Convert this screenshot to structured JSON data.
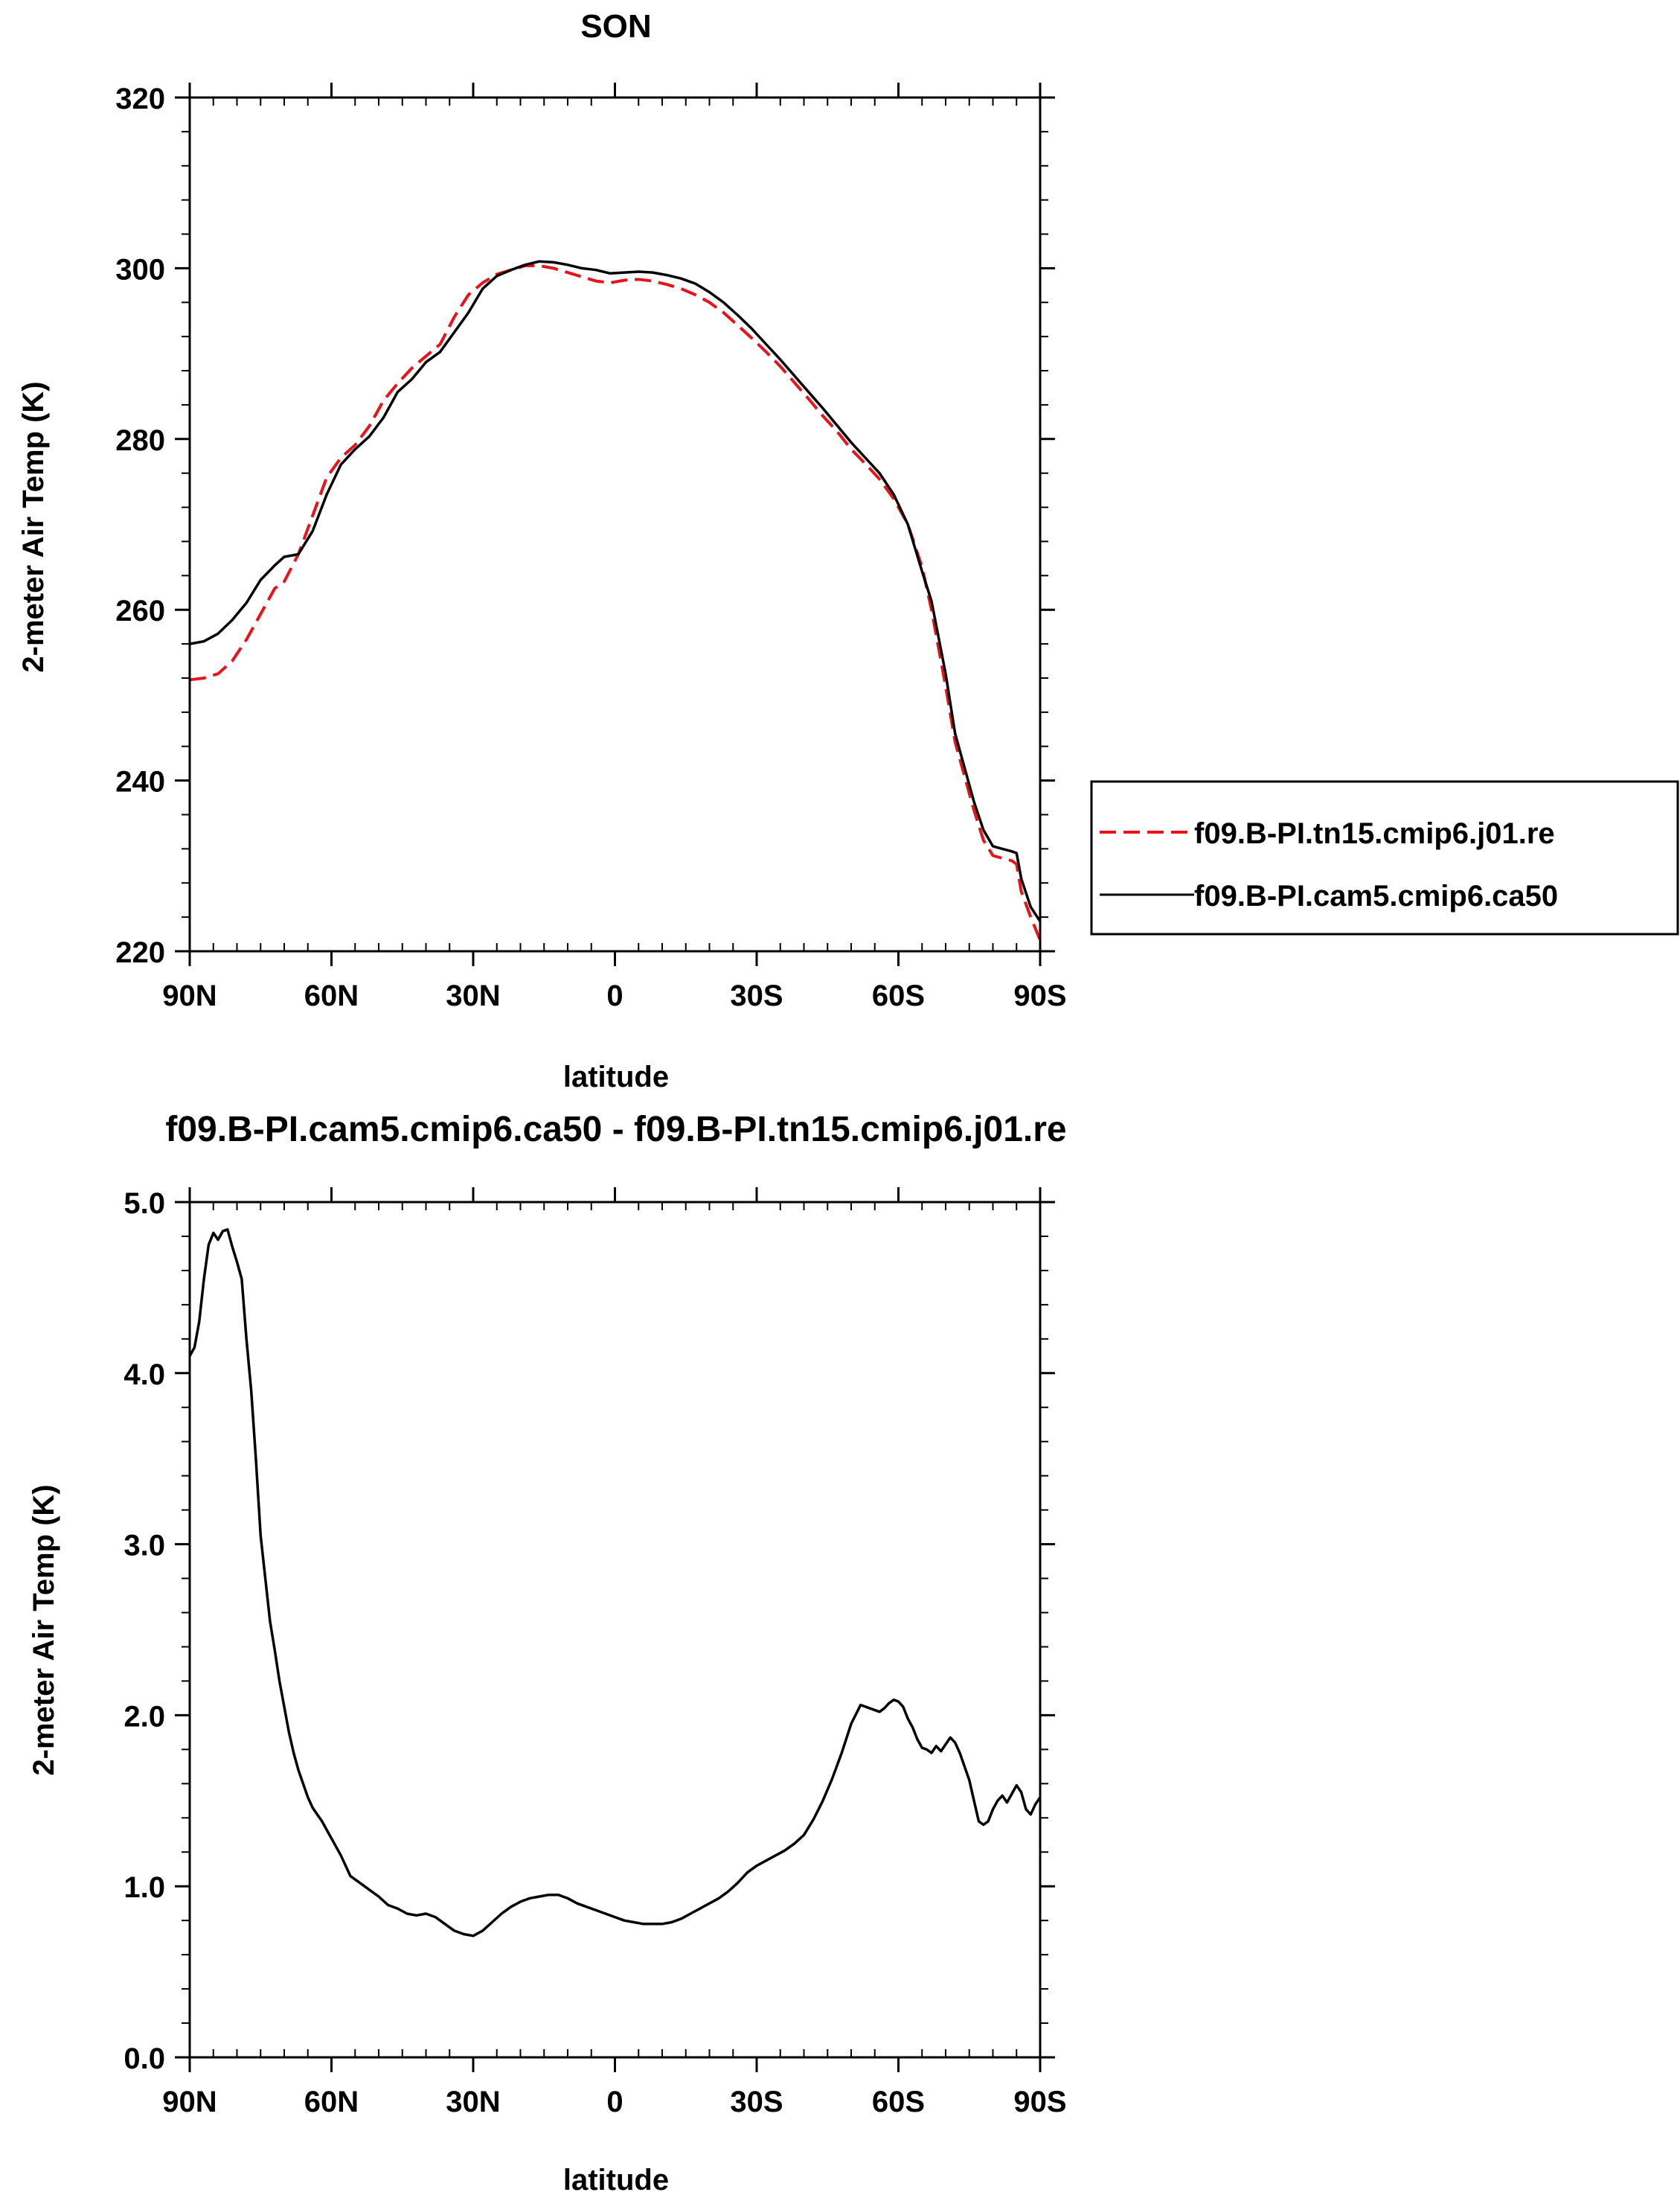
{
  "chart_data": [
    {
      "type": "line",
      "title": "SON",
      "xlabel": "latitude",
      "ylabel": "2-meter Air Temp (K)",
      "xlim": [
        90,
        -90
      ],
      "ylim": [
        220,
        320
      ],
      "yticks": [
        220,
        240,
        260,
        280,
        300,
        320
      ],
      "ytick_labels": [
        "220",
        "240",
        "260",
        "280",
        "300",
        "320"
      ],
      "xticks": [
        90,
        60,
        30,
        0,
        -30,
        -60,
        -90
      ],
      "xtick_labels": [
        "90N",
        "60N",
        "30N",
        "0",
        "30S",
        "60S",
        "90S"
      ],
      "grid": false,
      "legend": "outside-right",
      "series": [
        {
          "name": "f09.B-PI.tn15.cmip6.j01.re",
          "color": "#e8141c",
          "dash": "dashed",
          "x": [
            90,
            87,
            84,
            81,
            78,
            75,
            72,
            70,
            67,
            64,
            61,
            58,
            55,
            52,
            49,
            46,
            43,
            40,
            37,
            34,
            31,
            28,
            25,
            22,
            19,
            16,
            13,
            10,
            7,
            4,
            1,
            -2,
            -5,
            -8,
            -11,
            -14,
            -17,
            -20,
            -23,
            -26,
            -29,
            -32,
            -35,
            -38,
            -41,
            -44,
            -47,
            -50,
            -53,
            -56,
            -59,
            -62,
            -65,
            -67,
            -70,
            -72,
            -74,
            -76,
            -78,
            -80,
            -82,
            -84,
            -85,
            -86,
            -88,
            -90
          ],
          "y": [
            251.8,
            252,
            252.5,
            254,
            256.5,
            259.5,
            262.5,
            263.3,
            266.5,
            271,
            275.5,
            277.8,
            279.3,
            281.5,
            284.5,
            286.5,
            288.3,
            289.7,
            291.1,
            294.3,
            296.9,
            298.3,
            299.3,
            299.8,
            300.3,
            300.3,
            300,
            299.5,
            299,
            298.5,
            298.3,
            298.6,
            298.7,
            298.5,
            298.1,
            297.6,
            296.9,
            296,
            294.8,
            293.3,
            291.8,
            290.2,
            288.5,
            286.6,
            284.7,
            282.7,
            280.9,
            278.8,
            277.1,
            275.3,
            273,
            270,
            265,
            260,
            251,
            244.5,
            240.5,
            236.5,
            233,
            231.2,
            230.9,
            230.6,
            230.2,
            227,
            224,
            221.3
          ]
        },
        {
          "name": "f09.B-PI.cam5.cmip6.ca50",
          "color": "#000000",
          "dash": "solid",
          "x": [
            90,
            87,
            84,
            81,
            78,
            75,
            72,
            70,
            67,
            64,
            61,
            58,
            55,
            52,
            49,
            46,
            43,
            40,
            37,
            34,
            31,
            28,
            25,
            22,
            19,
            16,
            13,
            10,
            7,
            4,
            1,
            -2,
            -5,
            -8,
            -11,
            -14,
            -17,
            -20,
            -23,
            -26,
            -29,
            -32,
            -35,
            -38,
            -41,
            -44,
            -47,
            -50,
            -53,
            -56,
            -59,
            -62,
            -65,
            -67,
            -70,
            -72,
            -74,
            -76,
            -78,
            -80,
            -82,
            -84,
            -85,
            -86,
            -88,
            -90
          ],
          "y": [
            256,
            256.3,
            257.2,
            258.8,
            260.8,
            263.5,
            265.2,
            266.2,
            266.5,
            269.2,
            273.5,
            277,
            278.8,
            280.3,
            282.5,
            285.5,
            287,
            289,
            290.2,
            292.5,
            294.8,
            297.6,
            299.1,
            299.8,
            300.4,
            300.8,
            300.7,
            300.4,
            300,
            299.8,
            299.4,
            299.5,
            299.6,
            299.5,
            299.2,
            298.8,
            298.2,
            297.2,
            296,
            294.5,
            292.9,
            291.1,
            289.3,
            287.4,
            285.5,
            283.6,
            281.6,
            279.6,
            277.8,
            276,
            273.5,
            270,
            264.5,
            261,
            252.5,
            245.5,
            241.5,
            237.5,
            234.2,
            232.3,
            232,
            231.7,
            231.5,
            228.5,
            225.2,
            223.5
          ]
        }
      ]
    },
    {
      "type": "line",
      "title": "f09.B-PI.cam5.cmip6.ca50 - f09.B-PI.tn15.cmip6.j01.re",
      "xlabel": "latitude",
      "ylabel": "2-meter Air Temp (K)",
      "xlim": [
        90,
        -90
      ],
      "ylim": [
        0,
        5
      ],
      "yticks": [
        0,
        1,
        2,
        3,
        4,
        5
      ],
      "ytick_labels": [
        "0.0",
        "1.0",
        "2.0",
        "3.0",
        "4.0",
        "5.0"
      ],
      "xticks": [
        90,
        60,
        30,
        0,
        -30,
        -60,
        -90
      ],
      "xtick_labels": [
        "90N",
        "60N",
        "30N",
        "0",
        "30S",
        "60S",
        "90S"
      ],
      "grid": false,
      "series": [
        {
          "color": "#000000",
          "dash": "solid",
          "x": [
            90,
            89,
            88,
            87,
            86,
            85,
            84,
            83,
            82,
            81,
            80,
            79,
            78,
            77,
            76,
            75,
            74,
            73,
            72,
            71,
            70,
            69,
            68,
            67,
            66,
            65,
            64,
            63,
            62,
            61,
            60,
            58,
            56,
            54,
            52,
            50,
            48,
            46,
            44,
            42,
            40,
            38,
            36,
            34,
            32,
            30,
            28,
            26,
            24,
            22,
            20,
            18,
            16,
            14,
            12,
            11,
            10,
            8,
            6,
            4,
            2,
            0,
            -2,
            -4,
            -6,
            -8,
            -10,
            -12,
            -14,
            -16,
            -18,
            -20,
            -22,
            -24,
            -26,
            -28,
            -30,
            -32,
            -34,
            -36,
            -38,
            -40,
            -42,
            -44,
            -46,
            -48,
            -50,
            -52,
            -54,
            -56,
            -57,
            -58,
            -59,
            -60,
            -61,
            -62,
            -63,
            -64,
            -65,
            -66,
            -67,
            -68,
            -69,
            -70,
            -71,
            -72,
            -73,
            -74,
            -75,
            -76,
            -77,
            -78,
            -79,
            -80,
            -81,
            -82,
            -83,
            -84,
            -85,
            -86,
            -87,
            -88,
            -89,
            -90
          ],
          "y": [
            4.1,
            4.15,
            4.3,
            4.55,
            4.75,
            4.82,
            4.78,
            4.83,
            4.84,
            4.74,
            4.65,
            4.55,
            4.2,
            3.9,
            3.5,
            3.05,
            2.8,
            2.55,
            2.38,
            2.2,
            2.05,
            1.9,
            1.78,
            1.68,
            1.6,
            1.52,
            1.46,
            1.42,
            1.38,
            1.33,
            1.28,
            1.18,
            1.06,
            1.02,
            0.98,
            0.94,
            0.89,
            0.87,
            0.84,
            0.83,
            0.84,
            0.82,
            0.78,
            0.74,
            0.72,
            0.71,
            0.74,
            0.79,
            0.84,
            0.88,
            0.91,
            0.93,
            0.94,
            0.95,
            0.95,
            0.94,
            0.93,
            0.9,
            0.88,
            0.86,
            0.84,
            0.82,
            0.8,
            0.79,
            0.78,
            0.78,
            0.78,
            0.79,
            0.81,
            0.84,
            0.87,
            0.9,
            0.93,
            0.97,
            1.02,
            1.08,
            1.12,
            1.15,
            1.18,
            1.21,
            1.25,
            1.3,
            1.39,
            1.5,
            1.63,
            1.78,
            1.95,
            2.06,
            2.04,
            2.02,
            2.04,
            2.07,
            2.09,
            2.08,
            2.05,
            1.98,
            1.93,
            1.86,
            1.81,
            1.8,
            1.78,
            1.82,
            1.79,
            1.83,
            1.87,
            1.84,
            1.78,
            1.7,
            1.62,
            1.5,
            1.38,
            1.36,
            1.38,
            1.45,
            1.5,
            1.53,
            1.49,
            1.54,
            1.59,
            1.55,
            1.45,
            1.42,
            1.48,
            1.52
          ]
        }
      ]
    }
  ]
}
